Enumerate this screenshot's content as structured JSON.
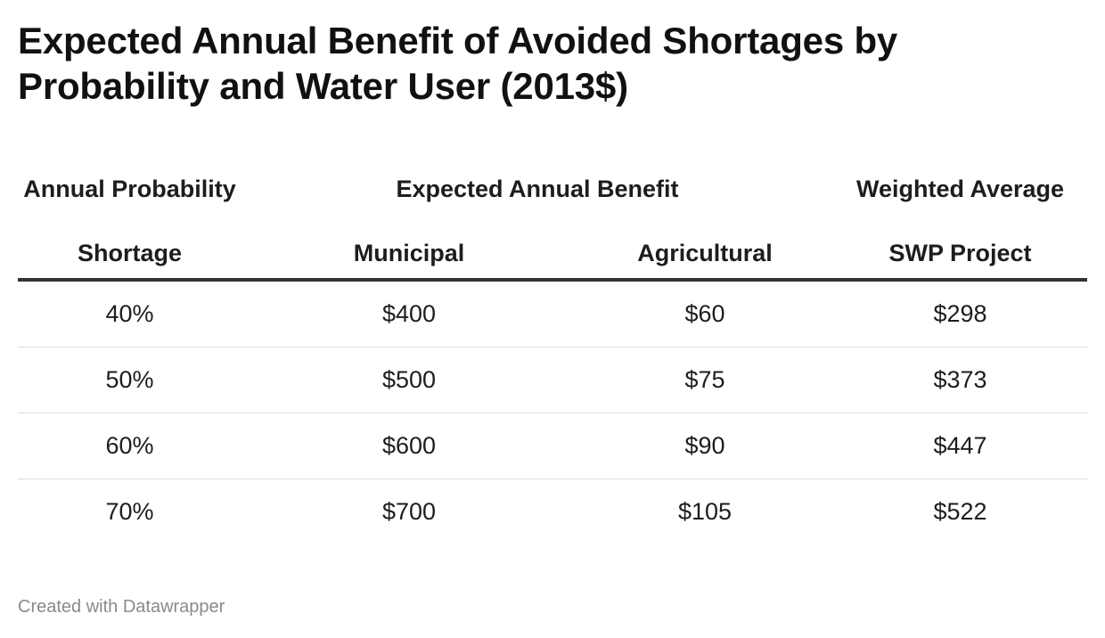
{
  "title": "Expected Annual Benefit of Avoided Shortages by Probability and Water User (2013$)",
  "footer": "Created with Datawrapper",
  "chart_data": {
    "type": "table",
    "title": "Expected Annual Benefit of Avoided Shortages by Probability and Water User (2013$)",
    "header_top": {
      "col1": "Annual Probability",
      "span": "Expected Annual Benefit",
      "col4": "Weighted Average"
    },
    "columns": [
      "Shortage",
      "Municipal",
      "Agricultural",
      "SWP Project"
    ],
    "rows": [
      [
        "40%",
        "$400",
        "$60",
        "$298"
      ],
      [
        "50%",
        "$500",
        "$75",
        "$373"
      ],
      [
        "60%",
        "$600",
        "$90",
        "$447"
      ],
      [
        "70%",
        "$700",
        "$105",
        "$522"
      ]
    ]
  }
}
